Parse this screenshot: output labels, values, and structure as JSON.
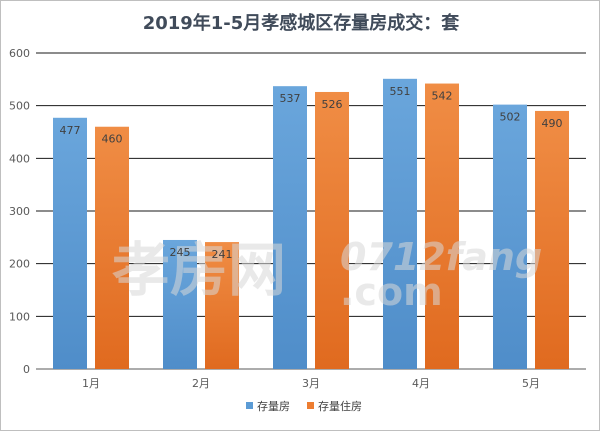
{
  "chart_data": {
    "type": "bar",
    "title": "2019年1-5月孝感城区存量房成交：套",
    "categories": [
      "1月",
      "2月",
      "3月",
      "4月",
      "5月"
    ],
    "series": [
      {
        "name": "存量房",
        "values": [
          477,
          245,
          537,
          551,
          502
        ],
        "color": "#5b9bd5"
      },
      {
        "name": "存量住房",
        "values": [
          460,
          241,
          526,
          542,
          490
        ],
        "color": "#ed7d31"
      }
    ],
    "ylim": [
      0,
      600
    ],
    "yticks": [
      0,
      100,
      200,
      300,
      400,
      500,
      600
    ],
    "grid": true,
    "legend": "bottom"
  },
  "watermark": {
    "chinese": "孝房网",
    "latin": "0712fang",
    "domain": ".com"
  }
}
